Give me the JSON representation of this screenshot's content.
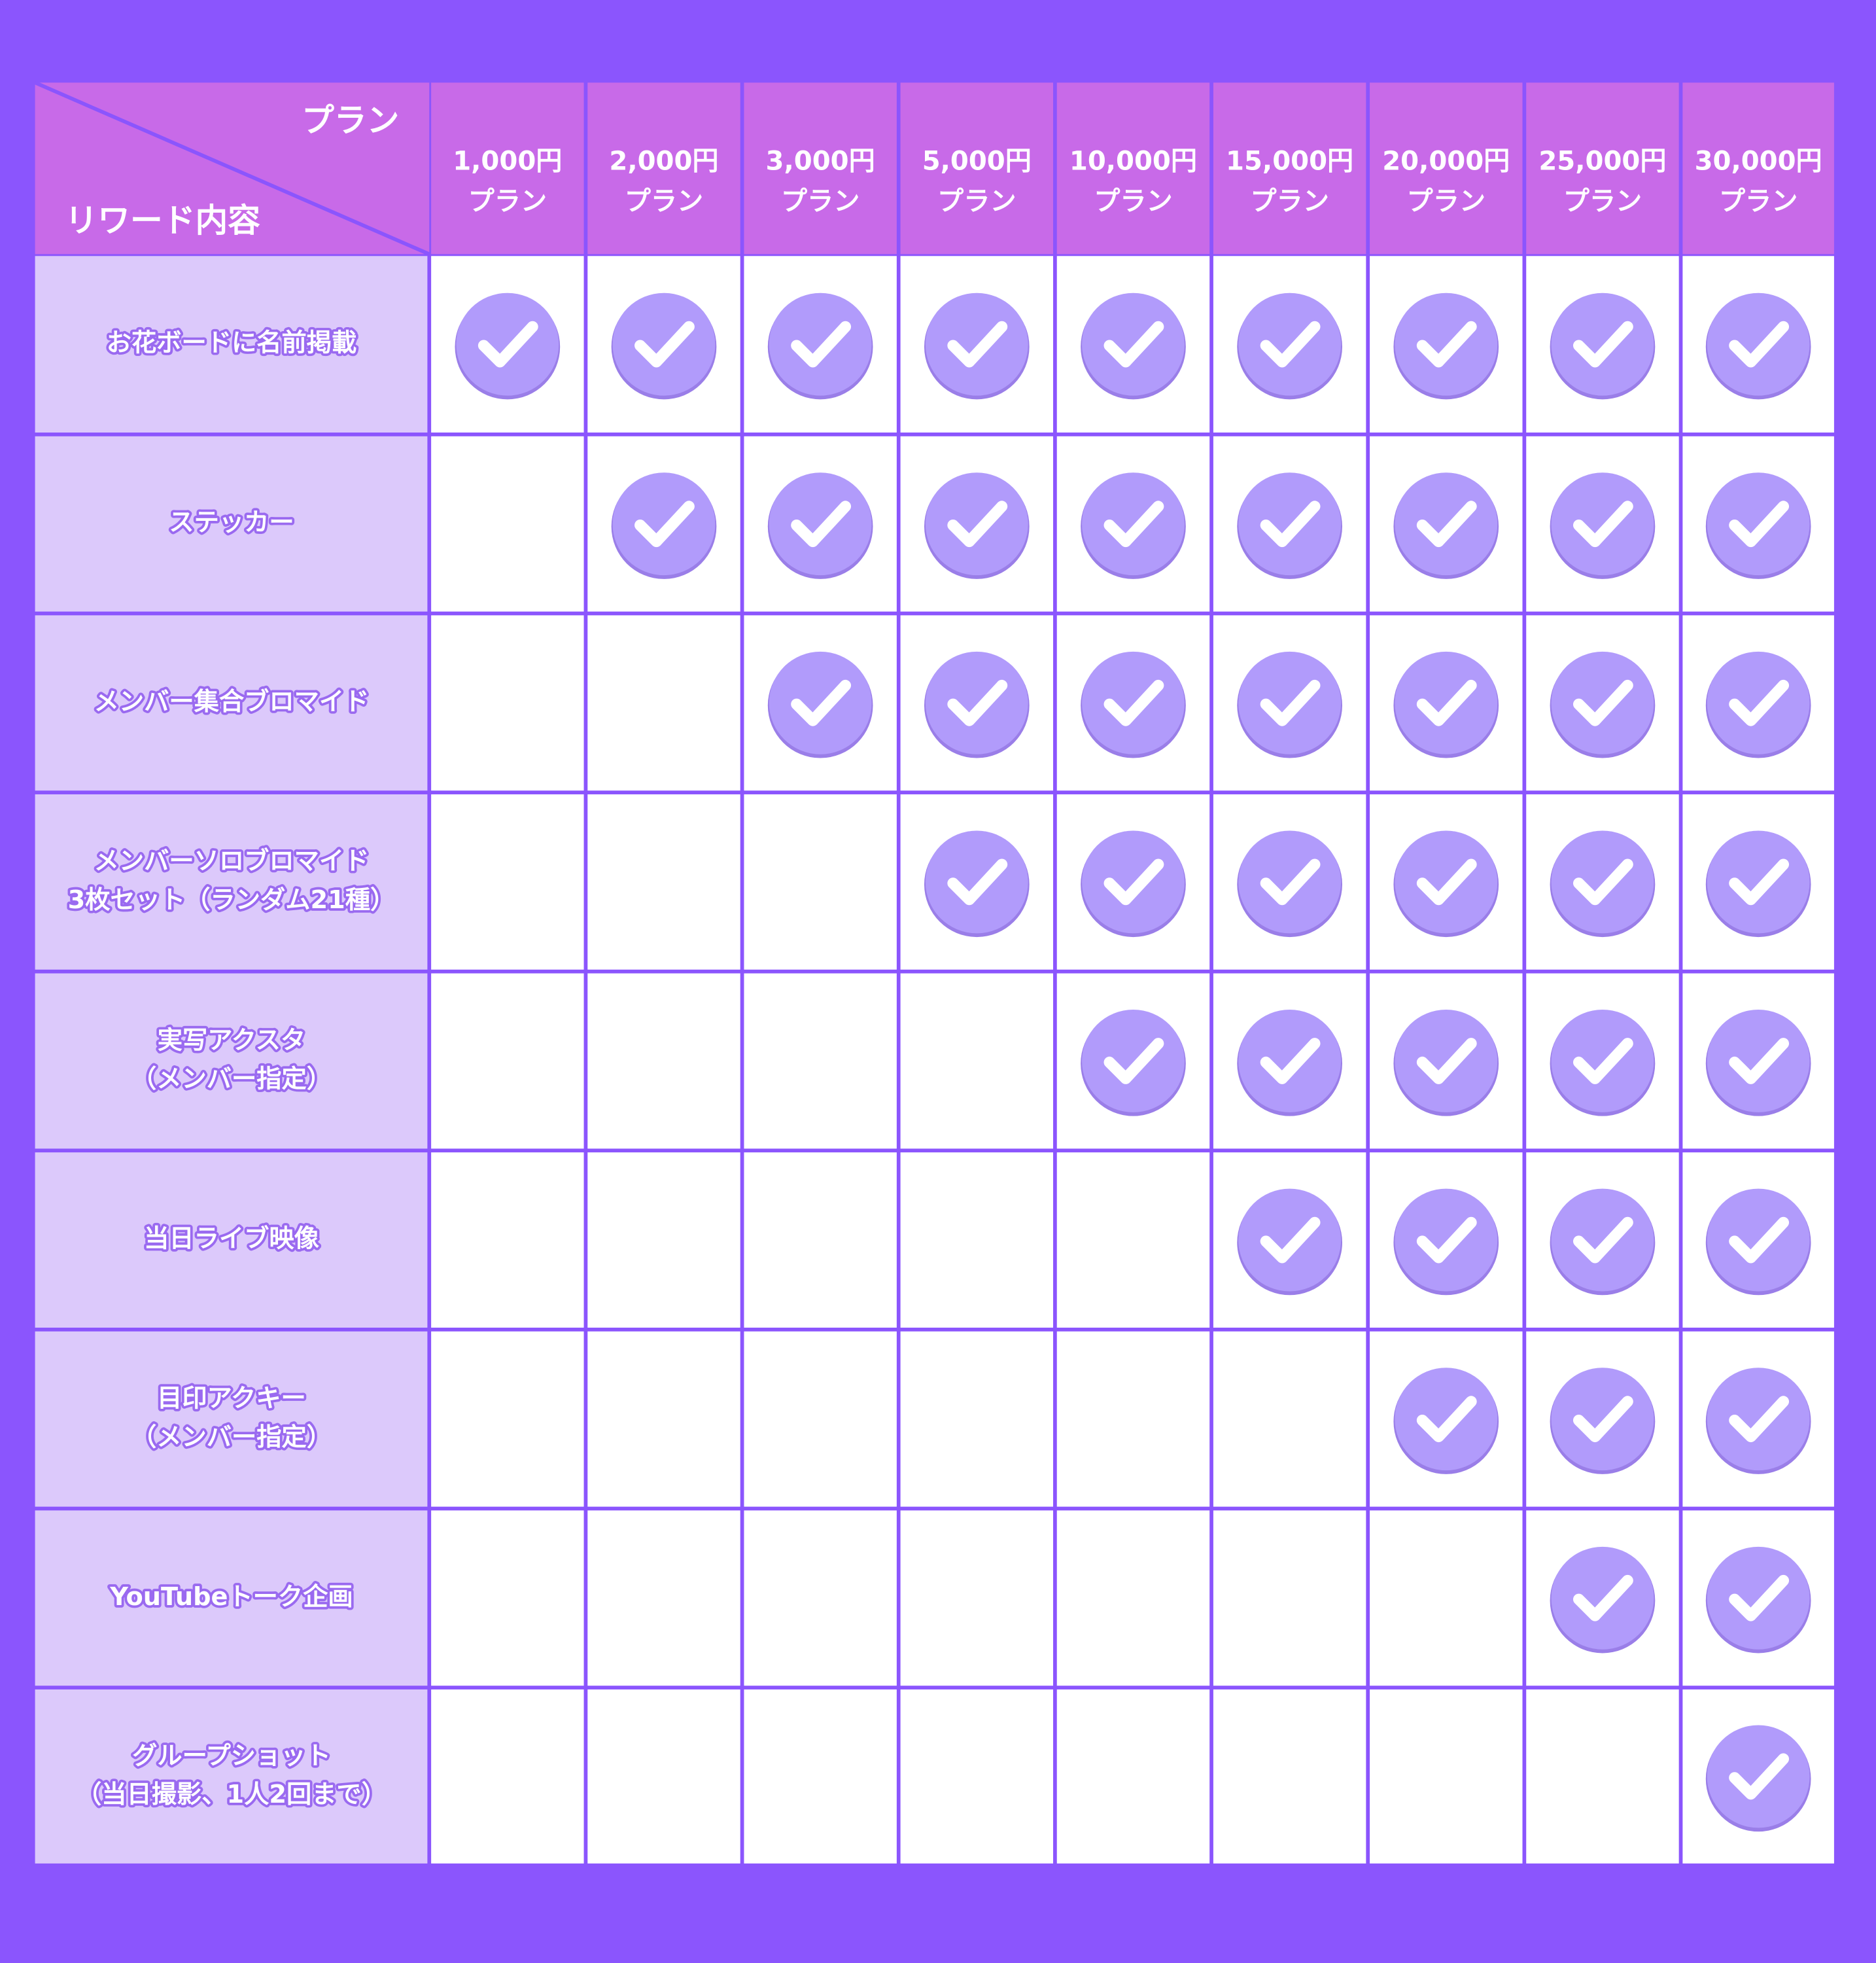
{
  "header": {
    "corner_top": "プラン",
    "corner_bottom": "リワード内容"
  },
  "columns": [
    {
      "amount": "1,000円",
      "label": "プラン"
    },
    {
      "amount": "2,000円",
      "label": "プラン"
    },
    {
      "amount": "3,000円",
      "label": "プラン"
    },
    {
      "amount": "5,000円",
      "label": "プラン"
    },
    {
      "amount": "10,000円",
      "label": "プラン"
    },
    {
      "amount": "15,000円",
      "label": "プラン"
    },
    {
      "amount": "20,000円",
      "label": "プラン"
    },
    {
      "amount": "25,000円",
      "label": "プラン"
    },
    {
      "amount": "30,000円",
      "label": "プラン"
    }
  ],
  "rows": [
    {
      "lines": [
        "お花ボードに名前掲載"
      ],
      "included": [
        true,
        true,
        true,
        true,
        true,
        true,
        true,
        true,
        true
      ]
    },
    {
      "lines": [
        "ステッカー"
      ],
      "included": [
        false,
        true,
        true,
        true,
        true,
        true,
        true,
        true,
        true
      ]
    },
    {
      "lines": [
        "メンバー集合ブロマイド"
      ],
      "included": [
        false,
        false,
        true,
        true,
        true,
        true,
        true,
        true,
        true
      ]
    },
    {
      "lines": [
        "メンバーソロブロマイド",
        "3枚セット（ランダム21種）"
      ],
      "included": [
        false,
        false,
        false,
        true,
        true,
        true,
        true,
        true,
        true
      ]
    },
    {
      "lines": [
        "実写アクスタ",
        "（メンバー指定）"
      ],
      "included": [
        false,
        false,
        false,
        false,
        true,
        true,
        true,
        true,
        true
      ]
    },
    {
      "lines": [
        "当日ライブ映像"
      ],
      "included": [
        false,
        false,
        false,
        false,
        false,
        true,
        true,
        true,
        true
      ]
    },
    {
      "lines": [
        "目印アクキー",
        "（メンバー指定）"
      ],
      "included": [
        false,
        false,
        false,
        false,
        false,
        false,
        true,
        true,
        true
      ]
    },
    {
      "lines": [
        "YouTubeトーク企画"
      ],
      "included": [
        false,
        false,
        false,
        false,
        false,
        false,
        false,
        true,
        true
      ]
    },
    {
      "lines": [
        "グループショット",
        "（当日撮影、1人2回まで）"
      ],
      "included": [
        false,
        false,
        false,
        false,
        false,
        false,
        false,
        false,
        true
      ]
    }
  ]
}
